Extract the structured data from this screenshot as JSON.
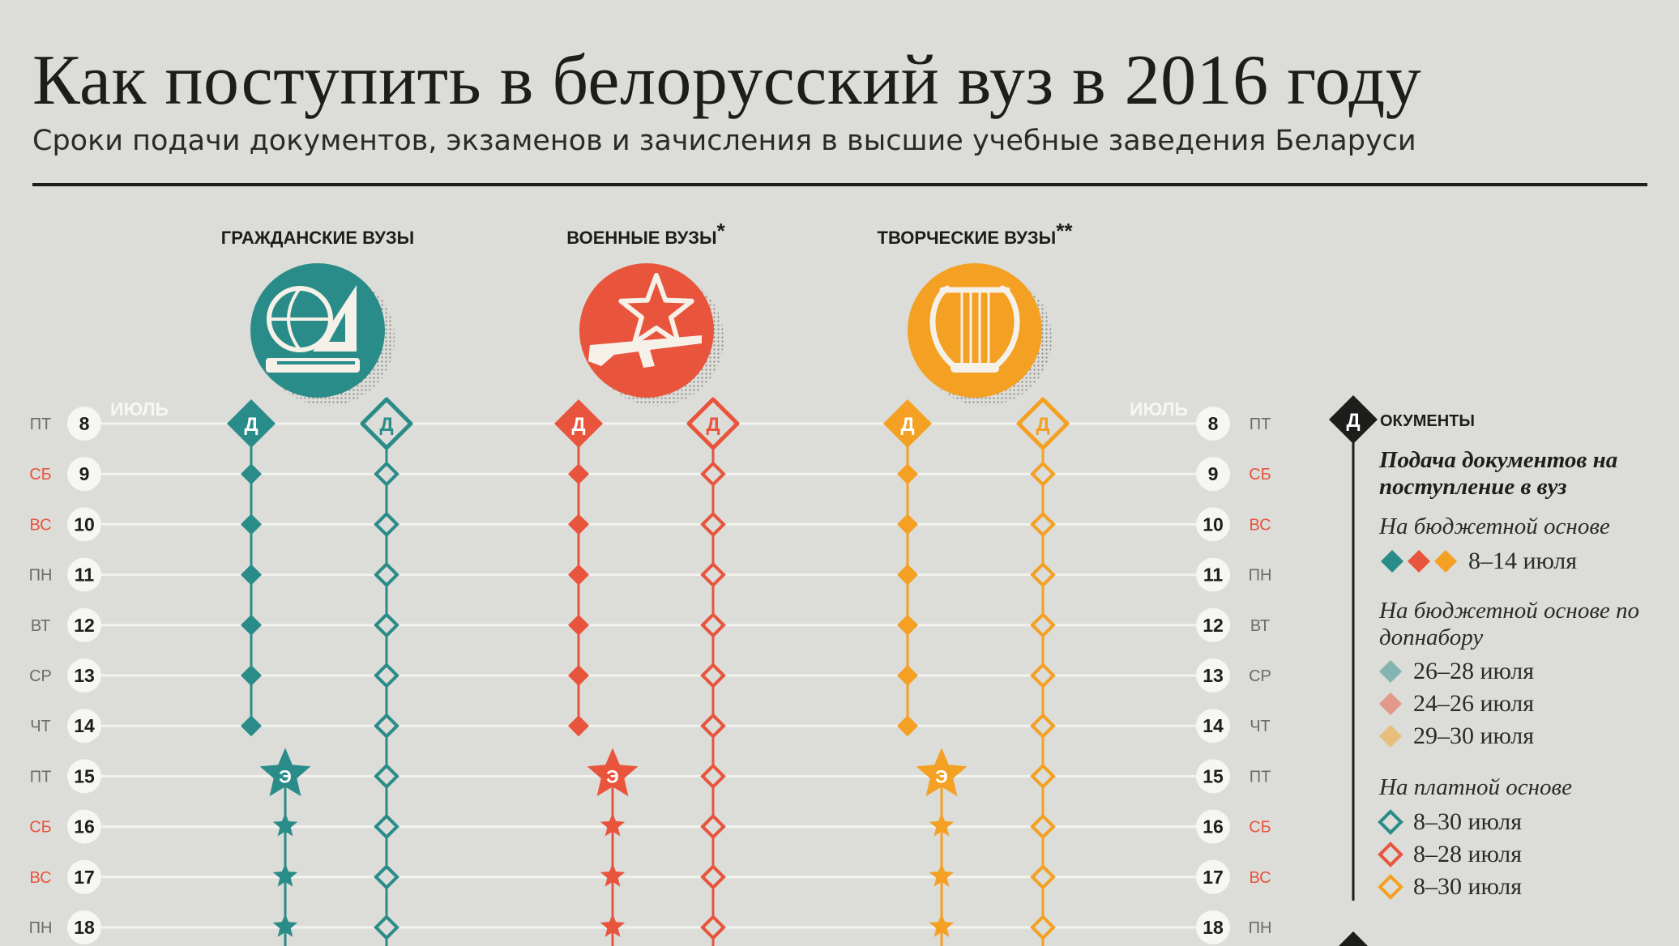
{
  "title": "Как поступить в белорусский вуз в 2016 году",
  "subtitle": "Сроки подачи документов, экзаменов и зачисления в высшие учебные заведения Беларуси",
  "month_label": "ИЮЛЬ",
  "colors": {
    "background": "#dcdcd8",
    "ink": "#1d1d1b",
    "civil": "#2a8c88",
    "military": "#e8543c",
    "creative": "#f4a022",
    "weekend": "#e8543c",
    "grid": "#f2f2ef"
  },
  "groups": [
    {
      "name": "ГРАЖДАНСКИЕ ВУЗЫ",
      "mark": "",
      "color": "#2a8c88",
      "icon": "globe-ruler-book-icon"
    },
    {
      "name": "ВОЕННЫЕ ВУЗЫ",
      "mark": "*",
      "color": "#e8543c",
      "icon": "star-rifle-icon"
    },
    {
      "name": "ТВОРЧЕСКИЕ ВУЗЫ",
      "mark": "**",
      "color": "#f4a022",
      "icon": "lyre-icon"
    }
  ],
  "days": [
    {
      "date": "8",
      "weekday": "ПТ",
      "weekend": false
    },
    {
      "date": "9",
      "weekday": "СБ",
      "weekend": true
    },
    {
      "date": "10",
      "weekday": "ВС",
      "weekend": true
    },
    {
      "date": "11",
      "weekday": "ПН",
      "weekend": false
    },
    {
      "date": "12",
      "weekday": "ВТ",
      "weekend": false
    },
    {
      "date": "13",
      "weekday": "СР",
      "weekend": false
    },
    {
      "date": "14",
      "weekday": "ЧТ",
      "weekend": false
    },
    {
      "date": "15",
      "weekday": "ПТ",
      "weekend": false
    },
    {
      "date": "16",
      "weekday": "СБ",
      "weekend": true
    },
    {
      "date": "17",
      "weekday": "ВС",
      "weekend": true
    },
    {
      "date": "18",
      "weekday": "ПН",
      "weekend": false
    }
  ],
  "marker_letters": {
    "documents": "Д",
    "exams": "Э"
  },
  "chart_data": {
    "type": "timeline",
    "month": "ИЮЛЬ",
    "dates": [
      8,
      9,
      10,
      11,
      12,
      13,
      14,
      15,
      16,
      17,
      18
    ],
    "series": [
      {
        "group": "ГРАЖДАНСКИЕ ВУЗЫ",
        "kind": "documents-budget",
        "start": 8,
        "end": 14
      },
      {
        "group": "ГРАЖДАНСКИЕ ВУЗЫ",
        "kind": "documents-paid",
        "start": 8,
        "end": 18
      },
      {
        "group": "ГРАЖДАНСКИЕ ВУЗЫ",
        "kind": "exams",
        "start": 15,
        "end": 18
      },
      {
        "group": "ВОЕННЫЕ ВУЗЫ",
        "kind": "documents-budget",
        "start": 8,
        "end": 14
      },
      {
        "group": "ВОЕННЫЕ ВУЗЫ",
        "kind": "documents-paid",
        "start": 8,
        "end": 18
      },
      {
        "group": "ВОЕННЫЕ ВУЗЫ",
        "kind": "exams",
        "start": 15,
        "end": 18
      },
      {
        "group": "ТВОРЧЕСКИЕ ВУЗЫ",
        "kind": "documents-budget",
        "start": 8,
        "end": 14
      },
      {
        "group": "ТВОРЧЕСКИЕ ВУЗЫ",
        "kind": "documents-paid",
        "start": 8,
        "end": 18
      },
      {
        "group": "ТВОРЧЕСКИЕ ВУЗЫ",
        "kind": "exams",
        "start": 15,
        "end": 18
      }
    ]
  },
  "legend": {
    "letter": "Д",
    "header": "ОКУМЕНТЫ",
    "title": "Подача документов на поступление в вуз",
    "budget_label": "На бюджетной основе",
    "budget_range": "8–14 июля",
    "extra_label": "На бюджетной основе по допнабору",
    "extra_ranges": [
      "26–28 июля",
      "24–26 июля",
      "29–30 июля"
    ],
    "paid_label": "На платной основе",
    "paid_ranges": [
      "8–30 июля",
      "8–28 июля",
      "8–30 июля"
    ]
  }
}
